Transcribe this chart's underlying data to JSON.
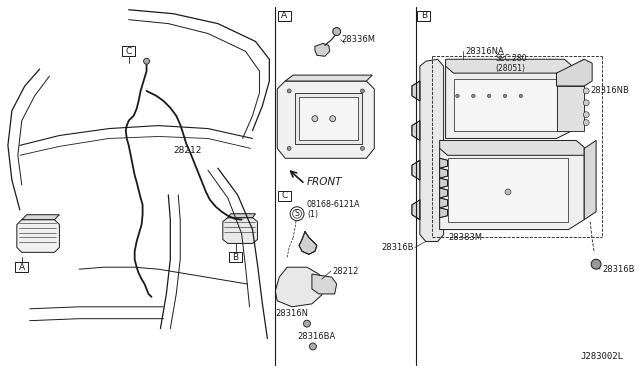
{
  "bg_color": "#ffffff",
  "line_color": "#1a1a1a",
  "diagram_code": "J283002L",
  "labels": {
    "A": "A",
    "B": "B",
    "C": "C",
    "28212": "28212",
    "28336M": "28336M",
    "28316NA": "28316NA",
    "28316NB": "28316NB",
    "28316B": "28316B",
    "28316N": "28316N",
    "28316BA": "28316BA",
    "28383M": "28383M",
    "08168": "08168-6121A\n(1)",
    "sec280": "SEC.280\n(28051)",
    "front": "FRONT"
  },
  "dividers": [
    [
      278,
      420
    ]
  ],
  "fig_w": 6.4,
  "fig_h": 3.72,
  "dpi": 100
}
